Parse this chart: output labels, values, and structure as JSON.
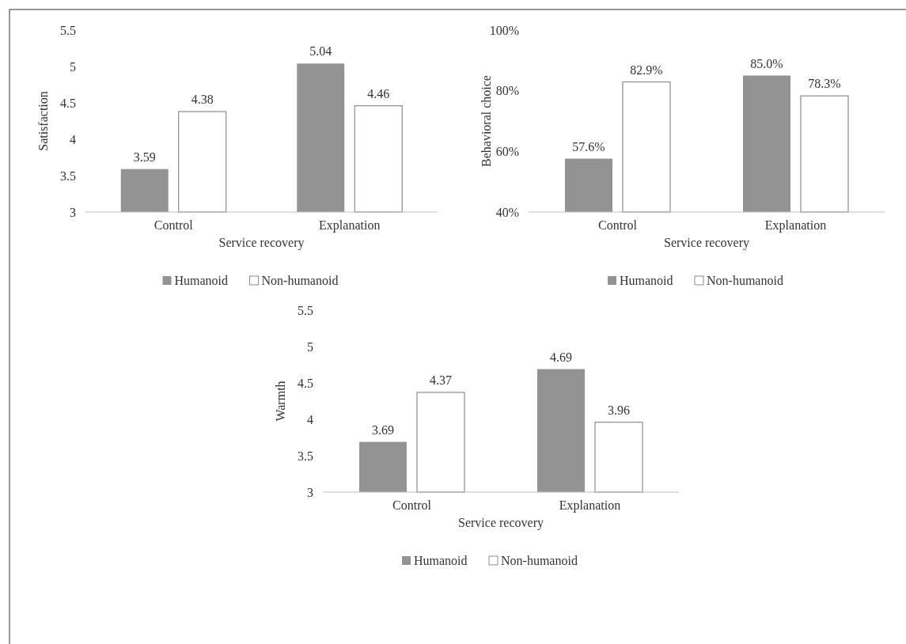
{
  "chart_data": [
    {
      "type": "bar",
      "categories": [
        "Control",
        "Explanation"
      ],
      "xlabel": "Service recovery",
      "ylabel": "Satisfaction",
      "ylim": [
        3,
        5.5
      ],
      "yticks": [
        3,
        3.5,
        4,
        4.5,
        5,
        5.5
      ],
      "legend": "bottom",
      "data_labels": true,
      "series": [
        {
          "name": "Humanoid",
          "color": "#939393",
          "values": [
            3.59,
            5.04
          ]
        },
        {
          "name": "Non-humanoid",
          "color": "#ffffff",
          "values": [
            4.38,
            4.46
          ]
        }
      ]
    },
    {
      "type": "bar",
      "categories": [
        "Control",
        "Explanation"
      ],
      "xlabel": "Service recovery",
      "ylabel": "Behavioral choice",
      "ylim": [
        40,
        100
      ],
      "yticks": [
        {
          "value": 40,
          "label": "40%"
        },
        {
          "value": 60,
          "label": "60%"
        },
        {
          "value": 80,
          "label": "80%"
        },
        {
          "value": 100,
          "label": "100%"
        }
      ],
      "legend": "bottom",
      "series": [
        {
          "name": "Humanoid",
          "color": "#939393",
          "values": [
            57.6,
            85.0
          ],
          "value_labels": [
            "57.6%",
            "85.0%"
          ]
        },
        {
          "name": "Non-humanoid",
          "color": "#ffffff",
          "values": [
            82.9,
            78.3
          ],
          "value_labels": [
            "82.9%",
            "78.3%"
          ]
        }
      ]
    },
    {
      "type": "bar",
      "categories": [
        "Control",
        "Explanation"
      ],
      "xlabel": "Service recovery",
      "ylabel": "Warmth",
      "ylim": [
        3,
        5.5
      ],
      "yticks": [
        3,
        3.5,
        4,
        4.5,
        5,
        5.5
      ],
      "legend": "bottom",
      "data_labels": true,
      "series": [
        {
          "name": "Humanoid",
          "color": "#939393",
          "values": [
            3.69,
            4.69
          ]
        },
        {
          "name": "Non-humanoid",
          "color": "#ffffff",
          "values": [
            4.37,
            3.96
          ]
        }
      ]
    }
  ]
}
